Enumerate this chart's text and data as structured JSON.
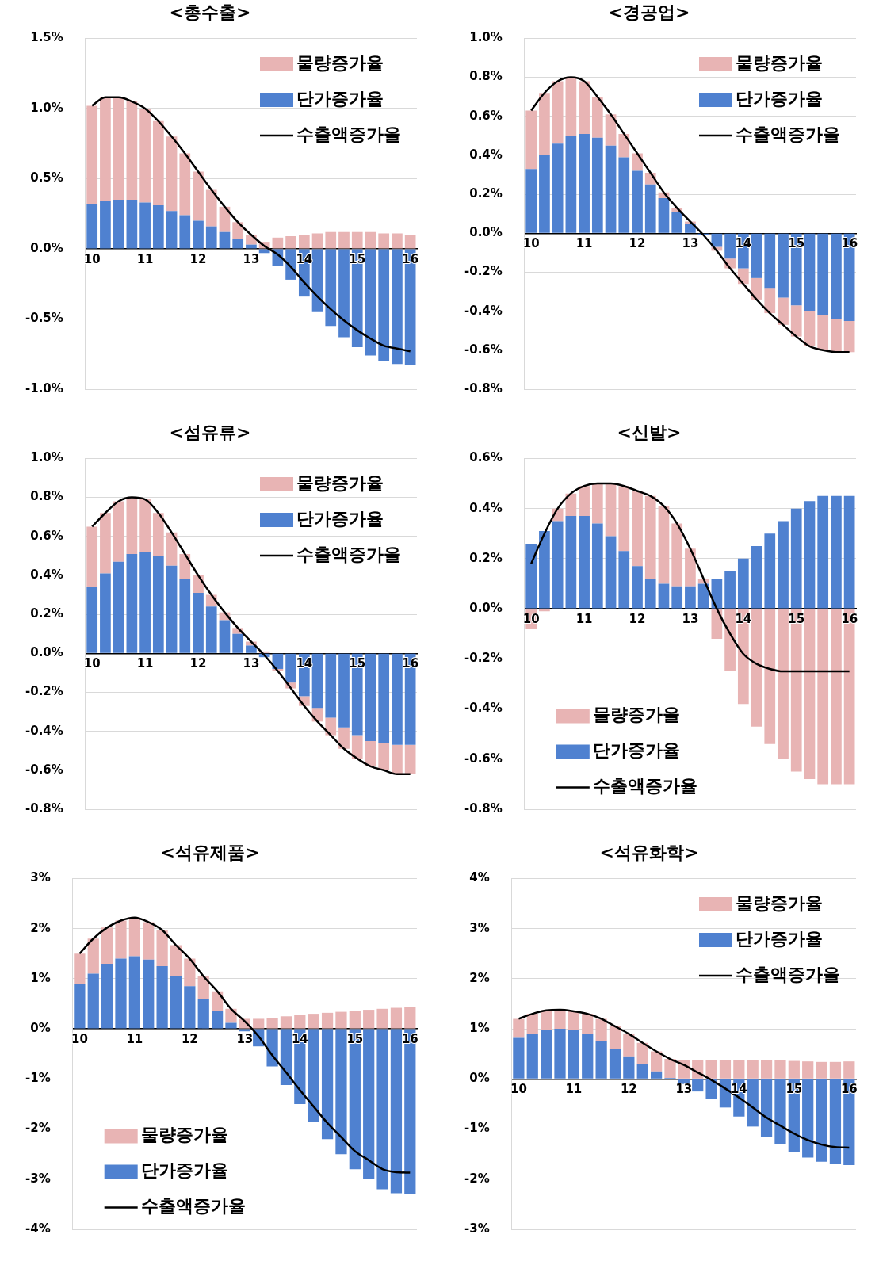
{
  "chart_data": [
    {
      "type": "bar",
      "title": "<총수출>",
      "stacked": true,
      "grid": "y",
      "legend": "top right",
      "categories": [
        "10",
        null,
        null,
        null,
        "11",
        null,
        null,
        null,
        "12",
        null,
        null,
        null,
        "13",
        null,
        null,
        null,
        "14",
        null,
        null,
        null,
        "15",
        null,
        null,
        null,
        "16"
      ],
      "ylim": [
        -1,
        1.5
      ],
      "yticks": [
        {
          "value": -1,
          "label": "-1.0%"
        },
        {
          "value": -0.5,
          "label": "-0.5%"
        },
        {
          "value": 0,
          "label": "0.0%"
        },
        {
          "value": 0.5,
          "label": "0.5%"
        },
        {
          "value": 1,
          "label": "1.0%"
        },
        {
          "value": 1.5,
          "label": "1.5%"
        }
      ],
      "series": [
        {
          "name": "단가증가율",
          "color": "#4f81d0",
          "values": [
            0.32,
            0.34,
            0.35,
            0.35,
            0.33,
            0.31,
            0.27,
            0.24,
            0.2,
            0.16,
            0.12,
            0.07,
            0.03,
            -0.03,
            -0.12,
            -0.22,
            -0.34,
            -0.45,
            -0.55,
            -0.63,
            -0.7,
            -0.76,
            -0.8,
            -0.82,
            -0.83
          ]
        },
        {
          "name": "물량증가율",
          "color": "#e8b4b4",
          "values": [
            0.7,
            0.74,
            0.73,
            0.7,
            0.67,
            0.6,
            0.53,
            0.44,
            0.35,
            0.26,
            0.18,
            0.12,
            0.07,
            0.05,
            0.08,
            0.09,
            0.1,
            0.11,
            0.12,
            0.12,
            0.12,
            0.12,
            0.11,
            0.11,
            0.1
          ]
        },
        {
          "name": "수출액증가율",
          "type": "line",
          "color": "#000000",
          "values": [
            1.02,
            1.08,
            1.08,
            1.05,
            1.0,
            0.91,
            0.8,
            0.68,
            0.55,
            0.42,
            0.3,
            0.19,
            0.1,
            0.02,
            -0.04,
            -0.13,
            -0.24,
            -0.34,
            -0.43,
            -0.51,
            -0.58,
            -0.64,
            -0.69,
            -0.71,
            -0.73
          ]
        }
      ]
    },
    {
      "type": "bar",
      "title": "<경공업>",
      "stacked": true,
      "grid": "y",
      "legend": "top right",
      "categories": [
        "10",
        null,
        null,
        null,
        "11",
        null,
        null,
        null,
        "12",
        null,
        null,
        null,
        "13",
        null,
        null,
        null,
        "14",
        null,
        null,
        null,
        "15",
        null,
        null,
        null,
        "16"
      ],
      "ylim": [
        -0.8,
        1.0
      ],
      "yticks": [
        {
          "value": -0.8,
          "label": "-0.8%"
        },
        {
          "value": -0.6,
          "label": "-0.6%"
        },
        {
          "value": -0.4,
          "label": "-0.4%"
        },
        {
          "value": -0.2,
          "label": "-0.2%"
        },
        {
          "value": 0,
          "label": "0.0%"
        },
        {
          "value": 0.2,
          "label": "0.2%"
        },
        {
          "value": 0.4,
          "label": "0.4%"
        },
        {
          "value": 0.6,
          "label": "0.6%"
        },
        {
          "value": 0.8,
          "label": "0.8%"
        },
        {
          "value": 1.0,
          "label": "1.0%"
        }
      ],
      "series": [
        {
          "name": "단가증가율",
          "color": "#4f81d0",
          "values": [
            0.33,
            0.4,
            0.46,
            0.5,
            0.51,
            0.49,
            0.45,
            0.39,
            0.32,
            0.25,
            0.18,
            0.11,
            0.05,
            -0.01,
            -0.07,
            -0.13,
            -0.18,
            -0.23,
            -0.28,
            -0.33,
            -0.37,
            -0.4,
            -0.42,
            -0.44,
            -0.45
          ]
        },
        {
          "name": "물량증가율",
          "color": "#e8b4b4",
          "values": [
            0.3,
            0.32,
            0.32,
            0.3,
            0.27,
            0.21,
            0.16,
            0.12,
            0.09,
            0.06,
            0.03,
            0.02,
            0.01,
            0.0,
            -0.02,
            -0.05,
            -0.08,
            -0.11,
            -0.13,
            -0.14,
            -0.16,
            -0.18,
            -0.18,
            -0.17,
            -0.16
          ]
        },
        {
          "name": "수출액증가율",
          "type": "line",
          "color": "#000000",
          "values": [
            0.63,
            0.72,
            0.78,
            0.8,
            0.78,
            0.7,
            0.61,
            0.51,
            0.41,
            0.31,
            0.21,
            0.13,
            0.06,
            -0.01,
            -0.09,
            -0.18,
            -0.26,
            -0.34,
            -0.41,
            -0.47,
            -0.53,
            -0.58,
            -0.6,
            -0.61,
            -0.61
          ]
        }
      ]
    },
    {
      "type": "bar",
      "title": "<섬유류>",
      "stacked": true,
      "grid": "y",
      "legend": "top right",
      "categories": [
        "10",
        null,
        null,
        null,
        "11",
        null,
        null,
        null,
        "12",
        null,
        null,
        null,
        "13",
        null,
        null,
        null,
        "14",
        null,
        null,
        null,
        "15",
        null,
        null,
        null,
        "16"
      ],
      "ylim": [
        -0.8,
        1.0
      ],
      "yticks": [
        {
          "value": -0.8,
          "label": "-0.8%"
        },
        {
          "value": -0.6,
          "label": "-0.6%"
        },
        {
          "value": -0.4,
          "label": "-0.4%"
        },
        {
          "value": -0.2,
          "label": "-0.2%"
        },
        {
          "value": 0,
          "label": "0.0%"
        },
        {
          "value": 0.2,
          "label": "0.2%"
        },
        {
          "value": 0.4,
          "label": "0.4%"
        },
        {
          "value": 0.6,
          "label": "0.6%"
        },
        {
          "value": 0.8,
          "label": "0.8%"
        },
        {
          "value": 1.0,
          "label": "1.0%"
        }
      ],
      "series": [
        {
          "name": "단가증가율",
          "color": "#4f81d0",
          "values": [
            0.34,
            0.41,
            0.47,
            0.51,
            0.52,
            0.5,
            0.45,
            0.38,
            0.31,
            0.24,
            0.17,
            0.1,
            0.04,
            -0.02,
            -0.08,
            -0.15,
            -0.22,
            -0.28,
            -0.33,
            -0.38,
            -0.42,
            -0.45,
            -0.46,
            -0.47,
            -0.47
          ]
        },
        {
          "name": "물량증가율",
          "color": "#e8b4b4",
          "values": [
            0.31,
            0.31,
            0.31,
            0.29,
            0.27,
            0.22,
            0.17,
            0.13,
            0.09,
            0.06,
            0.04,
            0.03,
            0.02,
            0.01,
            -0.01,
            -0.03,
            -0.05,
            -0.07,
            -0.09,
            -0.11,
            -0.12,
            -0.13,
            -0.14,
            -0.15,
            -0.15
          ]
        },
        {
          "name": "수출액증가율",
          "type": "line",
          "color": "#000000",
          "values": [
            0.65,
            0.72,
            0.78,
            0.8,
            0.79,
            0.72,
            0.62,
            0.51,
            0.4,
            0.3,
            0.21,
            0.13,
            0.06,
            -0.01,
            -0.09,
            -0.18,
            -0.27,
            -0.35,
            -0.42,
            -0.49,
            -0.54,
            -0.58,
            -0.6,
            -0.62,
            -0.62
          ]
        }
      ]
    },
    {
      "type": "bar",
      "title": "<신발>",
      "stacked": true,
      "grid": "y",
      "legend": "bottom left",
      "categories": [
        "10",
        null,
        null,
        null,
        "11",
        null,
        null,
        null,
        "12",
        null,
        null,
        null,
        "13",
        null,
        null,
        null,
        "14",
        null,
        null,
        null,
        "15",
        null,
        null,
        null,
        "16"
      ],
      "ylim": [
        -0.8,
        0.6
      ],
      "yticks": [
        {
          "value": -0.8,
          "label": "-0.8%"
        },
        {
          "value": -0.6,
          "label": "-0.6%"
        },
        {
          "value": -0.4,
          "label": "-0.4%"
        },
        {
          "value": -0.2,
          "label": "-0.2%"
        },
        {
          "value": 0,
          "label": "0.0%"
        },
        {
          "value": 0.2,
          "label": "0.2%"
        },
        {
          "value": 0.4,
          "label": "0.4%"
        },
        {
          "value": 0.6,
          "label": "0.6%"
        }
      ],
      "series": [
        {
          "name": "단가증가율",
          "color": "#4f81d0",
          "values": [
            0.26,
            0.31,
            0.35,
            0.37,
            0.37,
            0.34,
            0.29,
            0.23,
            0.17,
            0.12,
            0.1,
            0.09,
            0.09,
            0.1,
            0.12,
            0.15,
            0.2,
            0.25,
            0.3,
            0.35,
            0.4,
            0.43,
            0.45,
            0.45,
            0.45
          ]
        },
        {
          "name": "물량증가율",
          "color": "#e8b4b4",
          "values": [
            -0.08,
            -0.01,
            0.05,
            0.09,
            0.12,
            0.16,
            0.21,
            0.26,
            0.3,
            0.33,
            0.31,
            0.25,
            0.15,
            0.02,
            -0.12,
            -0.25,
            -0.38,
            -0.47,
            -0.54,
            -0.6,
            -0.65,
            -0.68,
            -0.7,
            -0.7,
            -0.7
          ]
        },
        {
          "name": "수출액증가율",
          "type": "line",
          "color": "#000000",
          "values": [
            0.18,
            0.3,
            0.4,
            0.46,
            0.49,
            0.5,
            0.5,
            0.49,
            0.47,
            0.45,
            0.41,
            0.34,
            0.24,
            0.12,
            0.0,
            -0.1,
            -0.18,
            -0.22,
            -0.24,
            -0.25,
            -0.25,
            -0.25,
            -0.25,
            -0.25,
            -0.25
          ]
        }
      ]
    },
    {
      "type": "bar",
      "title": "<석유제품>",
      "stacked": true,
      "grid": "y",
      "legend": "bottom left",
      "categories": [
        "10",
        null,
        null,
        null,
        "11",
        null,
        null,
        null,
        "12",
        null,
        null,
        null,
        "13",
        null,
        null,
        null,
        "14",
        null,
        null,
        null,
        "15",
        null,
        null,
        null,
        "16"
      ],
      "ylim": [
        -4,
        3
      ],
      "yticks": [
        {
          "value": -4,
          "label": "-4%"
        },
        {
          "value": -3,
          "label": "-3%"
        },
        {
          "value": -2,
          "label": "-2%"
        },
        {
          "value": -1,
          "label": "-1%"
        },
        {
          "value": 0,
          "label": "0%"
        },
        {
          "value": 1,
          "label": "1%"
        },
        {
          "value": 2,
          "label": "2%"
        },
        {
          "value": 3,
          "label": "3%"
        }
      ],
      "series": [
        {
          "name": "단가증가율",
          "color": "#4f81d0",
          "values": [
            0.9,
            1.1,
            1.3,
            1.4,
            1.45,
            1.38,
            1.25,
            1.05,
            0.85,
            0.6,
            0.35,
            0.12,
            -0.05,
            -0.35,
            -0.75,
            -1.12,
            -1.5,
            -1.85,
            -2.2,
            -2.5,
            -2.8,
            -3.0,
            -3.2,
            -3.28,
            -3.3
          ]
        },
        {
          "name": "물량증가율",
          "color": "#e8b4b4",
          "values": [
            0.6,
            0.7,
            0.72,
            0.76,
            0.77,
            0.75,
            0.72,
            0.62,
            0.55,
            0.45,
            0.4,
            0.28,
            0.2,
            0.2,
            0.22,
            0.25,
            0.28,
            0.3,
            0.32,
            0.34,
            0.36,
            0.38,
            0.4,
            0.42,
            0.43
          ]
        },
        {
          "name": "수출액증가율",
          "type": "line",
          "color": "#000000",
          "values": [
            1.5,
            1.8,
            2.02,
            2.16,
            2.22,
            2.13,
            1.97,
            1.67,
            1.4,
            1.05,
            0.75,
            0.4,
            0.15,
            -0.15,
            -0.53,
            -0.87,
            -1.22,
            -1.55,
            -1.88,
            -2.16,
            -2.44,
            -2.62,
            -2.8,
            -2.86,
            -2.87
          ]
        }
      ]
    },
    {
      "type": "bar",
      "title": "<석유화학>",
      "stacked": true,
      "grid": "y",
      "legend": "top right",
      "categories": [
        "10",
        null,
        null,
        null,
        "11",
        null,
        null,
        null,
        "12",
        null,
        null,
        null,
        "13",
        null,
        null,
        null,
        "14",
        null,
        null,
        null,
        "15",
        null,
        null,
        null,
        "16"
      ],
      "ylim": [
        -3,
        4
      ],
      "yticks": [
        {
          "value": -3,
          "label": "-3%"
        },
        {
          "value": -2,
          "label": "-2%"
        },
        {
          "value": -1,
          "label": "-1%"
        },
        {
          "value": 0,
          "label": "0%"
        },
        {
          "value": 1,
          "label": "1%"
        },
        {
          "value": 2,
          "label": "2%"
        },
        {
          "value": 3,
          "label": "3%"
        },
        {
          "value": 4,
          "label": "4%"
        }
      ],
      "series": [
        {
          "name": "단가증가율",
          "color": "#4f81d0",
          "values": [
            0.82,
            0.9,
            0.97,
            1.0,
            0.98,
            0.9,
            0.75,
            0.6,
            0.45,
            0.3,
            0.15,
            0.02,
            -0.1,
            -0.25,
            -0.4,
            -0.57,
            -0.75,
            -0.95,
            -1.15,
            -1.3,
            -1.45,
            -1.57,
            -1.65,
            -1.7,
            -1.72
          ]
        },
        {
          "name": "물량증가율",
          "color": "#e8b4b4",
          "values": [
            0.38,
            0.4,
            0.4,
            0.38,
            0.37,
            0.4,
            0.45,
            0.45,
            0.45,
            0.42,
            0.4,
            0.38,
            0.38,
            0.38,
            0.38,
            0.38,
            0.38,
            0.38,
            0.38,
            0.37,
            0.36,
            0.35,
            0.34,
            0.34,
            0.35
          ]
        },
        {
          "name": "수출액증가율",
          "type": "line",
          "color": "#000000",
          "values": [
            1.2,
            1.3,
            1.37,
            1.38,
            1.35,
            1.3,
            1.2,
            1.05,
            0.9,
            0.72,
            0.55,
            0.4,
            0.28,
            0.13,
            -0.02,
            -0.19,
            -0.37,
            -0.57,
            -0.77,
            -0.93,
            -1.09,
            -1.22,
            -1.31,
            -1.36,
            -1.37
          ]
        }
      ]
    }
  ]
}
